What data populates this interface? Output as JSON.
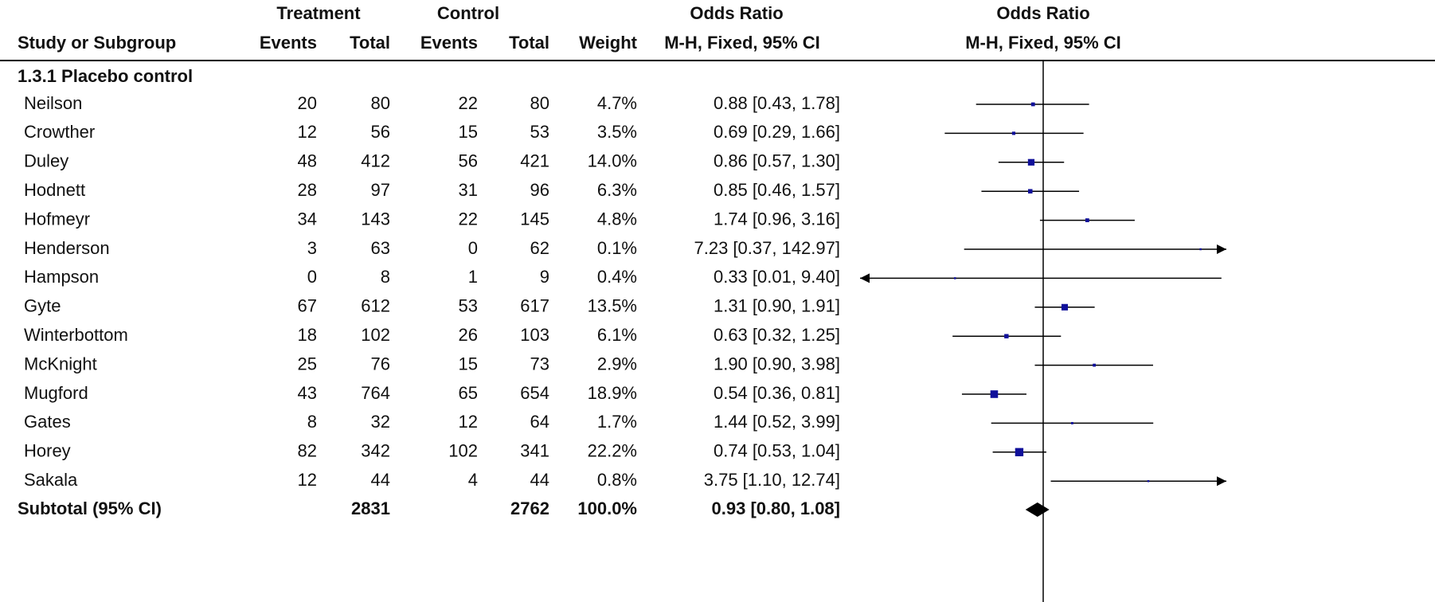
{
  "chart_data": {
    "type": "forest",
    "header": {
      "group_treatment": "Treatment",
      "group_control": "Control",
      "group_or": "Odds Ratio",
      "group_plot": "Odds Ratio",
      "study": "Study or Subgroup",
      "events_t": "Events",
      "total_t": "Total",
      "events_c": "Events",
      "total_c": "Total",
      "weight": "Weight",
      "method": "M-H, Fixed, 95% CI",
      "plot_method": "M-H, Fixed, 95% CI"
    },
    "subgroup": "1.3.1 Placebo control",
    "categories": [
      "Neilson",
      "Crowther",
      "Duley",
      "Hodnett",
      "Hofmeyr",
      "Henderson",
      "Hampson",
      "Gyte",
      "Winterbottom",
      "McKnight",
      "Mugford",
      "Gates",
      "Horey",
      "Sakala"
    ],
    "treatment_events": [
      20,
      12,
      48,
      28,
      34,
      3,
      0,
      67,
      18,
      25,
      43,
      8,
      82,
      12
    ],
    "treatment_total": [
      80,
      56,
      412,
      97,
      143,
      63,
      8,
      612,
      102,
      76,
      764,
      32,
      342,
      44
    ],
    "control_events": [
      22,
      15,
      56,
      31,
      22,
      0,
      1,
      53,
      26,
      15,
      65,
      12,
      102,
      4
    ],
    "control_total": [
      80,
      53,
      421,
      96,
      145,
      62,
      9,
      617,
      103,
      73,
      654,
      64,
      341,
      44
    ],
    "weight": [
      4.7,
      3.5,
      14.0,
      6.3,
      4.8,
      0.1,
      0.4,
      13.5,
      6.1,
      2.9,
      18.9,
      1.7,
      22.2,
      0.8
    ],
    "weight_labels": [
      "4.7%",
      "3.5%",
      "14.0%",
      "6.3%",
      "4.8%",
      "0.1%",
      "0.4%",
      "13.5%",
      "6.1%",
      "2.9%",
      "18.9%",
      "1.7%",
      "22.2%",
      "0.8%"
    ],
    "odds_ratio": [
      0.88,
      0.69,
      0.86,
      0.85,
      1.74,
      7.23,
      0.33,
      1.31,
      0.63,
      1.9,
      0.54,
      1.44,
      0.74,
      3.75
    ],
    "ci_low": [
      0.43,
      0.29,
      0.57,
      0.46,
      0.96,
      0.37,
      0.01,
      0.9,
      0.32,
      0.9,
      0.36,
      0.52,
      0.53,
      1.1
    ],
    "ci_high": [
      1.78,
      1.66,
      1.3,
      1.57,
      3.16,
      142.97,
      9.4,
      1.91,
      1.25,
      3.98,
      0.81,
      3.99,
      1.04,
      12.74
    ],
    "or_labels": [
      "0.88 [0.43, 1.78]",
      "0.69 [0.29, 1.66]",
      "0.86 [0.57, 1.30]",
      "0.85 [0.46, 1.57]",
      "1.74 [0.96, 3.16]",
      "7.23 [0.37, 142.97]",
      "0.33 [0.01, 9.40]",
      "1.31 [0.90, 1.91]",
      "0.63 [0.32, 1.25]",
      "1.90 [0.90, 3.98]",
      "0.54 [0.36, 0.81]",
      "1.44 [0.52, 3.99]",
      "0.74 [0.53, 1.04]",
      "3.75 [1.10, 12.74]"
    ],
    "subtotal": {
      "label": "Subtotal (95% CI)",
      "treatment_total": 2831,
      "control_total": 2762,
      "weight": 100.0,
      "weight_label": "100.0%",
      "odds_ratio": 0.93,
      "ci_low": 0.8,
      "ci_high": 1.08,
      "or_label": "0.93 [0.80, 1.08]"
    },
    "xlim": [
      0.1,
      10
    ],
    "log_x": true,
    "null_line": 1,
    "marker_color": "#10109a"
  }
}
